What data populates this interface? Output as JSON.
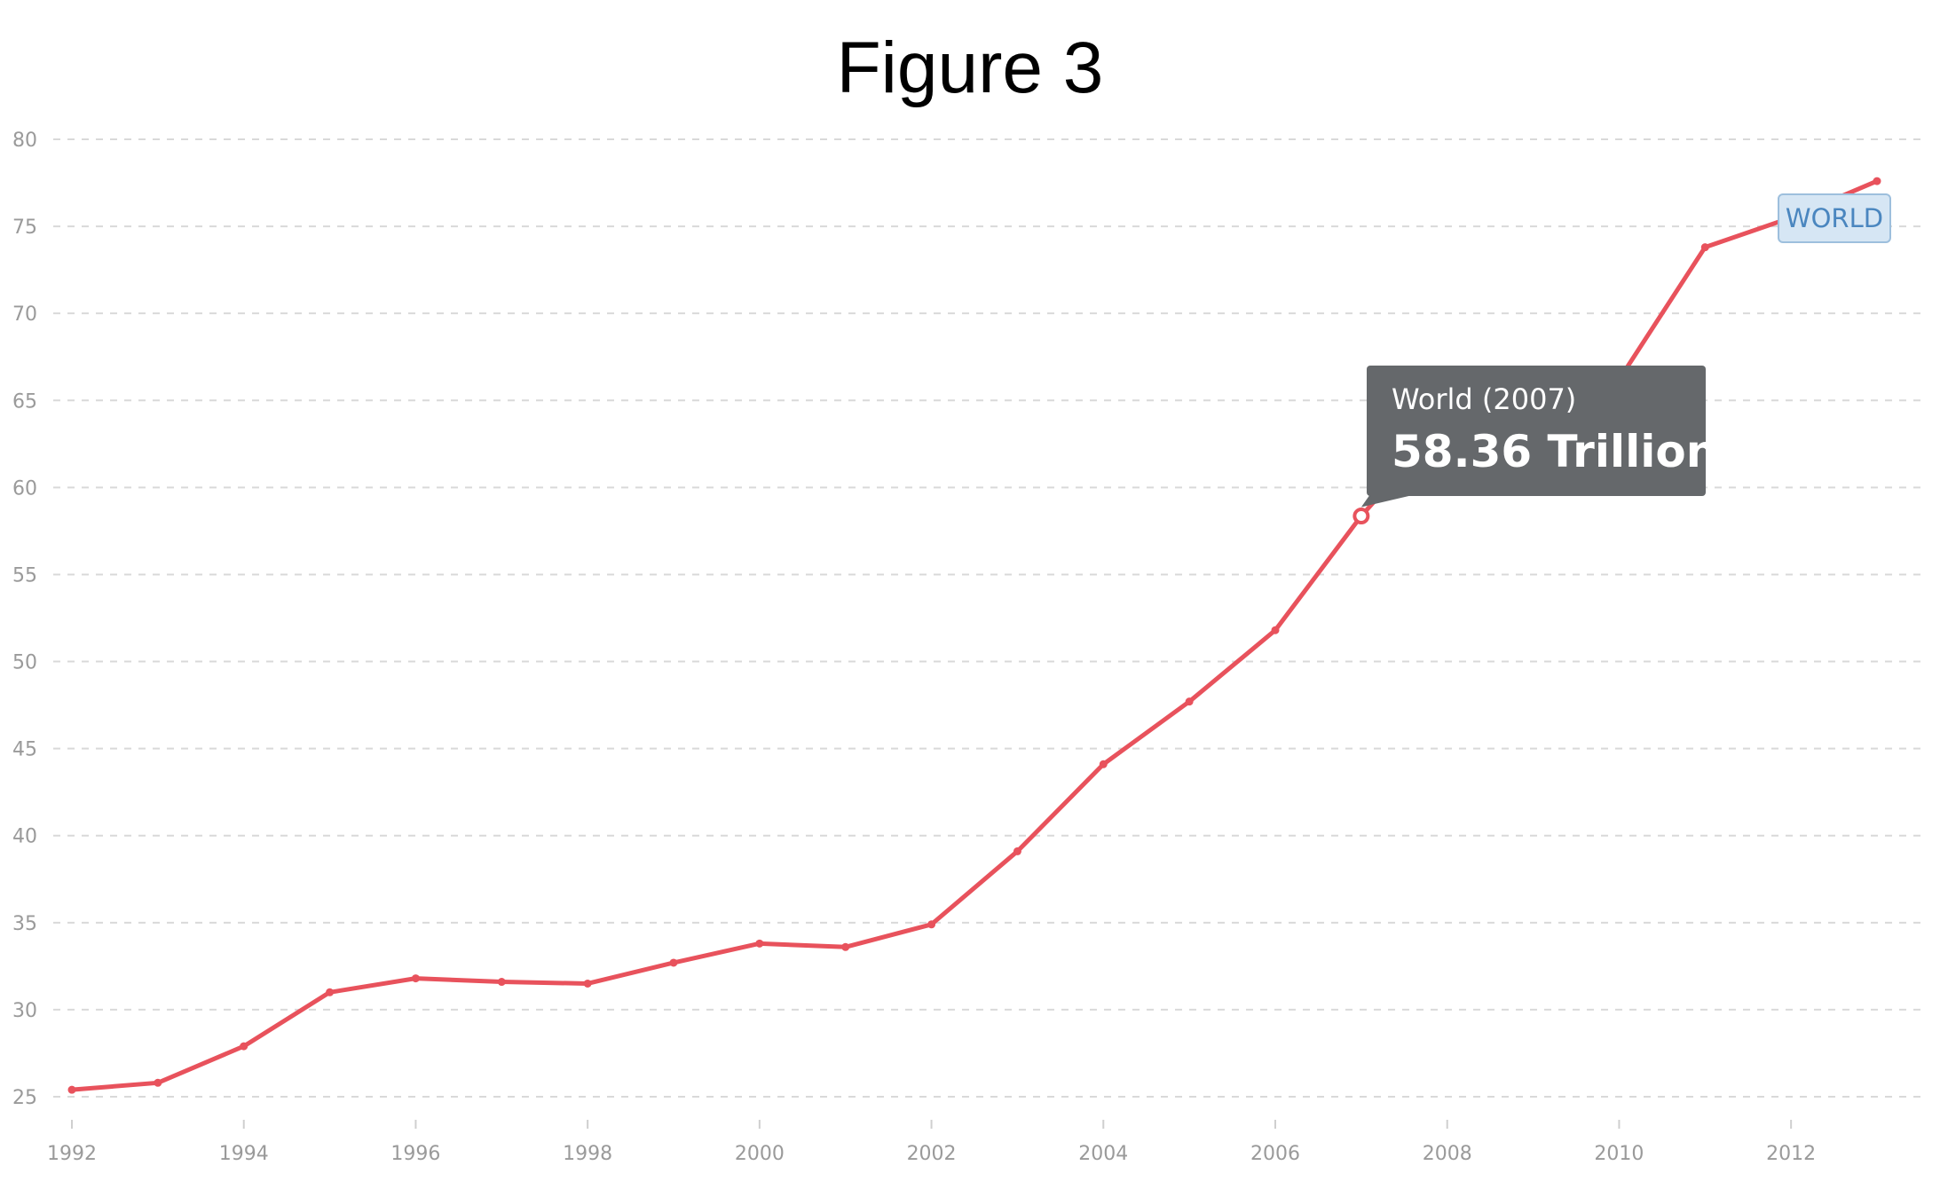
{
  "figure_title": "Figure 3",
  "colors": {
    "series": "#e8525c",
    "tooltip_bg": "#65686b",
    "label_bg": "#d6e6f4",
    "label_border": "#9dbfdd",
    "label_text": "#4a86bf",
    "grid": "#d9d9d9",
    "tick_text": "#9a9a9a"
  },
  "tooltip": {
    "series_year": "World (2007)",
    "value_text": "58.36 Trillion"
  },
  "chart_data": {
    "type": "line",
    "title": "Figure 3",
    "xlabel": "",
    "ylabel": "",
    "xlim": [
      1992,
      2013
    ],
    "ylim": [
      25,
      80
    ],
    "x_ticks": [
      1992,
      1994,
      1996,
      1998,
      2000,
      2002,
      2004,
      2006,
      2008,
      2010,
      2012
    ],
    "y_ticks": [
      25,
      30,
      35,
      40,
      45,
      50,
      55,
      60,
      65,
      70,
      75,
      80
    ],
    "grid": true,
    "x": [
      1992,
      1993,
      1994,
      1995,
      1996,
      1997,
      1998,
      1999,
      2000,
      2001,
      2002,
      2003,
      2004,
      2005,
      2006,
      2007,
      2008,
      2009,
      2010,
      2011,
      2012,
      2013
    ],
    "series": [
      {
        "name": "WORLD",
        "values": [
          25.4,
          25.8,
          27.9,
          31.0,
          31.8,
          31.6,
          31.5,
          32.7,
          33.8,
          33.6,
          34.9,
          39.1,
          44.1,
          47.7,
          51.8,
          58.36,
          63.9,
          60.6,
          66.2,
          73.8,
          75.5,
          77.6
        ]
      }
    ],
    "highlighted_point": {
      "x": 2007,
      "y": 58.36
    }
  }
}
